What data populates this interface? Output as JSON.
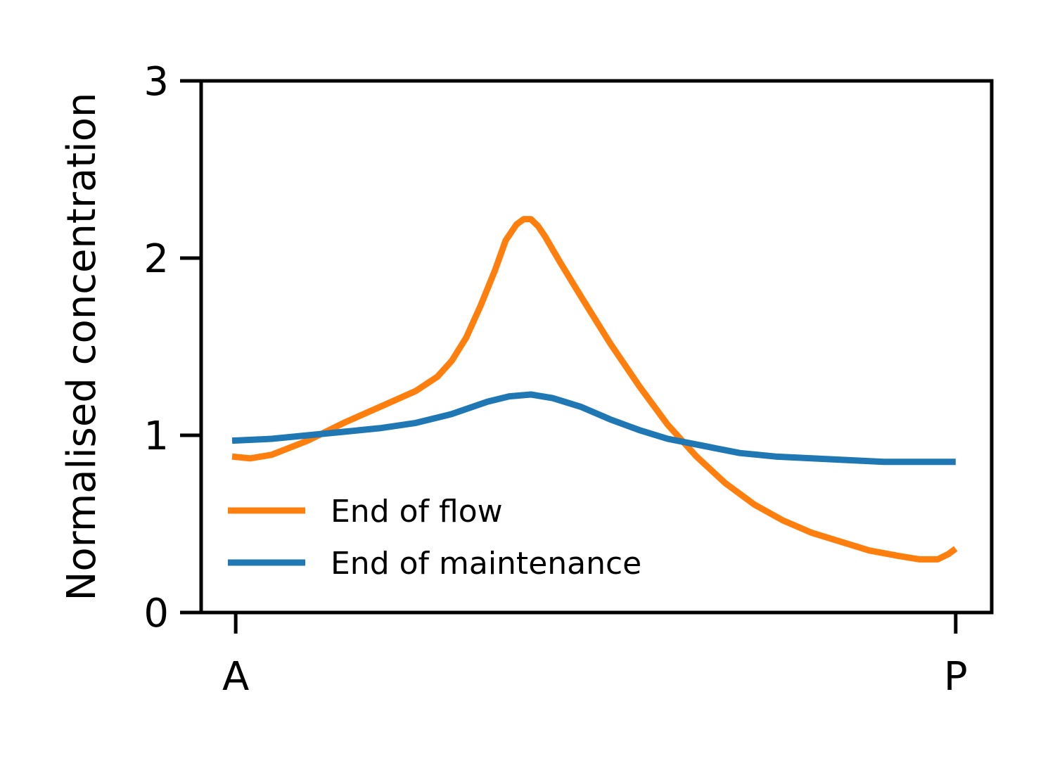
{
  "chart_data": {
    "type": "line",
    "title": "",
    "xlabel": "",
    "ylabel": "Normalised concentration",
    "xlim": [
      -0.048,
      1.05
    ],
    "ylim": [
      0,
      3
    ],
    "x_ticks": [
      {
        "value": 0,
        "label": "A"
      },
      {
        "value": 1,
        "label": "P"
      }
    ],
    "y_ticks": [
      {
        "value": 0,
        "label": "0"
      },
      {
        "value": 1,
        "label": "1"
      },
      {
        "value": 2,
        "label": "2"
      },
      {
        "value": 3,
        "label": "3"
      }
    ],
    "grid": false,
    "legend_position": "lower-left",
    "series": [
      {
        "name": "End of flow",
        "color": "#ff7f0e",
        "points": [
          [
            -0.005,
            0.88
          ],
          [
            0.02,
            0.87
          ],
          [
            0.05,
            0.89
          ],
          [
            0.1,
            0.97
          ],
          [
            0.15,
            1.07
          ],
          [
            0.2,
            1.16
          ],
          [
            0.25,
            1.25
          ],
          [
            0.28,
            1.33
          ],
          [
            0.3,
            1.42
          ],
          [
            0.32,
            1.55
          ],
          [
            0.34,
            1.73
          ],
          [
            0.36,
            1.93
          ],
          [
            0.375,
            2.1
          ],
          [
            0.39,
            2.19
          ],
          [
            0.4,
            2.22
          ],
          [
            0.41,
            2.22
          ],
          [
            0.42,
            2.18
          ],
          [
            0.43,
            2.12
          ],
          [
            0.45,
            1.98
          ],
          [
            0.48,
            1.78
          ],
          [
            0.52,
            1.52
          ],
          [
            0.56,
            1.28
          ],
          [
            0.6,
            1.06
          ],
          [
            0.64,
            0.88
          ],
          [
            0.68,
            0.73
          ],
          [
            0.72,
            0.61
          ],
          [
            0.76,
            0.52
          ],
          [
            0.8,
            0.45
          ],
          [
            0.84,
            0.4
          ],
          [
            0.88,
            0.35
          ],
          [
            0.92,
            0.32
          ],
          [
            0.95,
            0.3
          ],
          [
            0.975,
            0.3
          ],
          [
            0.99,
            0.33
          ],
          [
            1.0,
            0.36
          ]
        ]
      },
      {
        "name": "End of maintenance",
        "color": "#1f77b4",
        "points": [
          [
            -0.005,
            0.97
          ],
          [
            0.05,
            0.98
          ],
          [
            0.1,
            1.0
          ],
          [
            0.15,
            1.02
          ],
          [
            0.2,
            1.04
          ],
          [
            0.25,
            1.07
          ],
          [
            0.3,
            1.12
          ],
          [
            0.35,
            1.19
          ],
          [
            0.38,
            1.22
          ],
          [
            0.41,
            1.23
          ],
          [
            0.44,
            1.21
          ],
          [
            0.48,
            1.16
          ],
          [
            0.52,
            1.09
          ],
          [
            0.56,
            1.03
          ],
          [
            0.6,
            0.98
          ],
          [
            0.65,
            0.94
          ],
          [
            0.7,
            0.9
          ],
          [
            0.75,
            0.88
          ],
          [
            0.8,
            0.87
          ],
          [
            0.85,
            0.86
          ],
          [
            0.9,
            0.85
          ],
          [
            0.95,
            0.85
          ],
          [
            1.0,
            0.85
          ]
        ]
      }
    ]
  }
}
